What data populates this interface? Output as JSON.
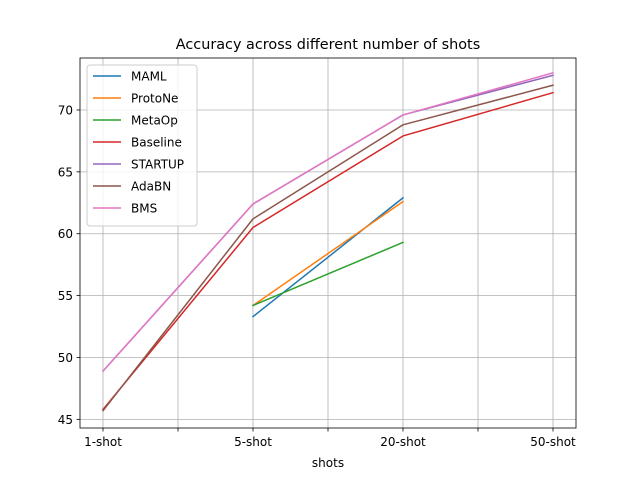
{
  "chart_data": {
    "type": "line",
    "title": "Accuracy across different number of shots",
    "xlabel": "shots",
    "ylabel": "",
    "categories": [
      "1-shot",
      "5-shot",
      "20-shot",
      "50-shot"
    ],
    "ylim": [
      44.3,
      74.2
    ],
    "yticks": [
      45,
      50,
      55,
      60,
      65,
      70
    ],
    "grid": true,
    "legend_position": "top-left",
    "series": [
      {
        "name": "MAML",
        "color": "#1f77b4",
        "values": [
          null,
          53.3,
          62.9,
          null
        ]
      },
      {
        "name": "ProtoNe",
        "color": "#ff7f0e",
        "values": [
          null,
          54.2,
          62.6,
          null
        ]
      },
      {
        "name": "MetaOp",
        "color": "#2ca02c",
        "values": [
          null,
          54.2,
          59.3,
          null
        ]
      },
      {
        "name": "Baseline",
        "color": "#d62728",
        "values": [
          45.8,
          60.5,
          67.9,
          71.4
        ]
      },
      {
        "name": "STARTUP",
        "color": "#9467bd",
        "values": [
          48.9,
          62.4,
          69.6,
          72.8
        ]
      },
      {
        "name": "AdaBN",
        "color": "#8c564b",
        "values": [
          45.7,
          61.2,
          68.8,
          72.0
        ]
      },
      {
        "name": "BMS",
        "color": "#e377c2",
        "values": [
          48.9,
          62.4,
          69.6,
          73.0
        ]
      }
    ]
  }
}
